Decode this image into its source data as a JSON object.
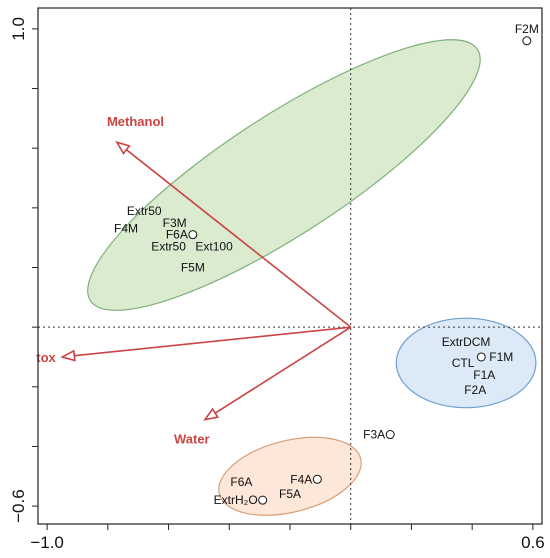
{
  "chart_data": {
    "type": "scatter",
    "subtype": "biplot",
    "title": "",
    "xlabel": "",
    "ylabel": "",
    "xlim": [
      -1.03,
      0.63
    ],
    "ylim": [
      -0.66,
      1.07
    ],
    "x_tick_labels": [
      {
        "value": -1.0,
        "label": "−1.0"
      },
      {
        "value": 0.6,
        "label": "0.6"
      }
    ],
    "y_tick_labels": [
      {
        "value": 1.0,
        "label": "1.0"
      },
      {
        "value": -0.6,
        "label": "−0.6"
      }
    ],
    "reference_lines": {
      "x": 0.0,
      "y": 0.0,
      "style": "dotted"
    },
    "colors": {
      "vector": "#cc4444",
      "green_group_fill": "#d4e8c8",
      "green_group_stroke": "#7fb07a",
      "blue_group_fill": "#d6e6f6",
      "blue_group_stroke": "#6f9fd0",
      "orange_group_fill": "#fbe3d2",
      "orange_group_stroke": "#d8a07a"
    },
    "vectors": [
      {
        "name": "Methanol",
        "x": -0.77,
        "y": 0.62
      },
      {
        "name": "tox",
        "x": -0.95,
        "y": -0.1
      },
      {
        "name": "Water",
        "x": -0.48,
        "y": -0.31
      }
    ],
    "points": [
      {
        "label": "F2M",
        "x": 0.58,
        "y": 0.96,
        "marker": true
      },
      {
        "label": "Extr50",
        "x": -0.68,
        "y": 0.39,
        "marker": false
      },
      {
        "label": "F3M",
        "x": -0.58,
        "y": 0.35,
        "marker": false
      },
      {
        "label": "F4M",
        "x": -0.74,
        "y": 0.33,
        "marker": false
      },
      {
        "label": "F6A",
        "x": -0.52,
        "y": 0.31,
        "marker": true
      },
      {
        "label": "Extr50",
        "x": -0.6,
        "y": 0.27,
        "marker": false
      },
      {
        "label": "Ext100",
        "x": -0.45,
        "y": 0.27,
        "marker": false
      },
      {
        "label": "F5M",
        "x": -0.52,
        "y": 0.2,
        "marker": false
      },
      {
        "label": "ExtrDCM",
        "x": 0.38,
        "y": -0.05,
        "marker": false
      },
      {
        "label": "CTL",
        "x": 0.37,
        "y": -0.12,
        "marker": false
      },
      {
        "label": "F1M",
        "x": 0.43,
        "y": -0.1,
        "marker": true
      },
      {
        "label": "F1A",
        "x": 0.44,
        "y": -0.16,
        "marker": false
      },
      {
        "label": "F2A",
        "x": 0.41,
        "y": -0.21,
        "marker": false
      },
      {
        "label": "F3A",
        "x": 0.13,
        "y": -0.36,
        "marker": true
      },
      {
        "label": "F6A",
        "x": -0.36,
        "y": -0.52,
        "marker": false
      },
      {
        "label": "F4A",
        "x": -0.11,
        "y": -0.51,
        "marker": true
      },
      {
        "label": "F5A",
        "x": -0.2,
        "y": -0.56,
        "marker": false
      },
      {
        "label": "ExtrH₂O",
        "x": -0.29,
        "y": -0.58,
        "marker": true
      }
    ],
    "groups": [
      {
        "color": "green",
        "cx": -0.22,
        "cy": 0.51,
        "rx": 0.76,
        "ry": 0.2,
        "angle_deg": -33
      },
      {
        "color": "blue",
        "cx": 0.38,
        "cy": -0.12,
        "rx": 0.23,
        "ry": 0.15,
        "angle_deg": 0
      },
      {
        "color": "orange",
        "cx": -0.2,
        "cy": -0.5,
        "rx": 0.24,
        "ry": 0.12,
        "angle_deg": -14
      }
    ]
  }
}
